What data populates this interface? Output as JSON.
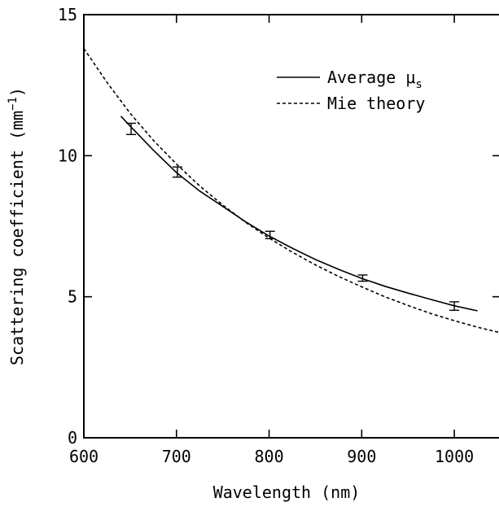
{
  "chart_data": {
    "type": "line",
    "xlabel": "Wavelength (nm)",
    "ylabel": "Scattering coefficient (mm",
    "ylabel_superscript": "−1",
    "ylabel_close": ")",
    "xlim": [
      600,
      1050
    ],
    "ylim": [
      0,
      15
    ],
    "x_ticks": [
      600,
      700,
      800,
      900,
      1000
    ],
    "x_tick_labels": [
      "600",
      "700",
      "800",
      "900",
      "1000"
    ],
    "y_ticks": [
      0,
      5,
      10,
      15
    ],
    "y_tick_labels": [
      "0",
      "5",
      "10",
      "15"
    ],
    "grid": false,
    "legend_position": "top-right",
    "series": [
      {
        "name": "Average μ",
        "name_subscript": "s",
        "style": "solid",
        "x": [
          640,
          650,
          675,
          700,
          725,
          750,
          775,
          800,
          825,
          850,
          875,
          900,
          925,
          950,
          975,
          1000,
          1025
        ],
        "y": [
          11.4,
          11.05,
          10.2,
          9.4,
          8.75,
          8.2,
          7.65,
          7.15,
          6.72,
          6.32,
          5.97,
          5.65,
          5.37,
          5.13,
          4.9,
          4.68,
          4.5
        ],
        "error_bars": [
          {
            "x": 651,
            "y": 10.95,
            "err": 0.2
          },
          {
            "x": 701,
            "y": 9.42,
            "err": 0.18
          },
          {
            "x": 801,
            "y": 7.19,
            "err": 0.13
          },
          {
            "x": 901,
            "y": 5.66,
            "err": 0.11
          },
          {
            "x": 1000,
            "y": 4.67,
            "err": 0.15
          }
        ]
      },
      {
        "name": "Mie theory",
        "style": "dashed",
        "x": [
          600,
          625,
          650,
          675,
          700,
          725,
          750,
          775,
          800,
          825,
          850,
          875,
          900,
          925,
          950,
          975,
          1000,
          1025,
          1050
        ],
        "y": [
          13.8,
          12.6,
          11.5,
          10.55,
          9.7,
          8.93,
          8.25,
          7.63,
          7.08,
          6.58,
          6.13,
          5.72,
          5.35,
          5.0,
          4.69,
          4.4,
          4.15,
          3.92,
          3.72
        ]
      }
    ]
  }
}
